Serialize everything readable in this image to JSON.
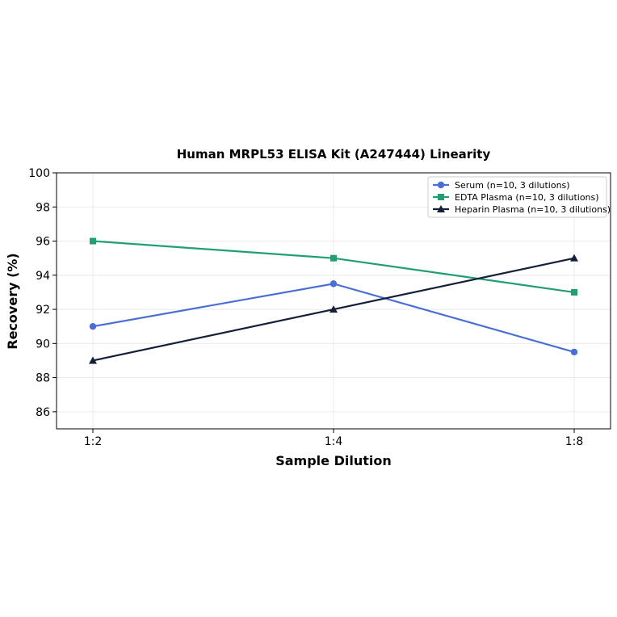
{
  "chart_data": {
    "type": "line",
    "title": "Human MRPL53 ELISA Kit (A247444) Linearity",
    "xlabel": "Sample Dilution",
    "ylabel": "Recovery (%)",
    "categories": [
      "1:2",
      "1:4",
      "1:8"
    ],
    "ylim": [
      85,
      100
    ],
    "yticks": [
      "86",
      "88",
      "90",
      "92",
      "94",
      "96",
      "98",
      "100"
    ],
    "grid": true,
    "legend_position": "top-right",
    "series": [
      {
        "name": "Serum (n=10, 3 dilutions)",
        "values": [
          91.0,
          93.5,
          89.5
        ],
        "color": "#4a6fd4",
        "marker": "circle"
      },
      {
        "name": "EDTA Plasma (n=10, 3 dilutions)",
        "values": [
          96.0,
          95.0,
          93.0
        ],
        "color": "#219e74",
        "marker": "square"
      },
      {
        "name": "Heparin Plasma (n=10, 3 dilutions)",
        "values": [
          89.0,
          92.0,
          95.0
        ],
        "color": "#141f3a",
        "marker": "triangle"
      }
    ]
  }
}
